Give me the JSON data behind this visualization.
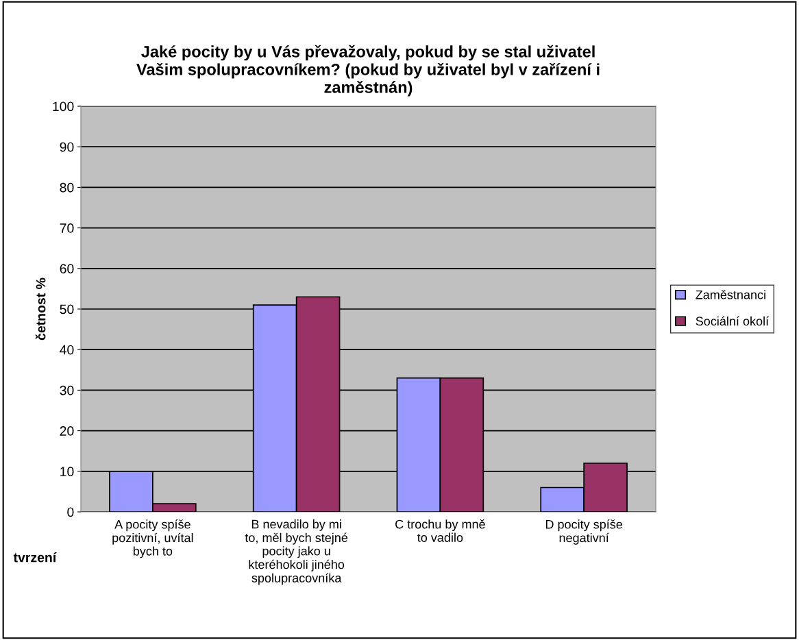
{
  "chart_data": {
    "type": "bar",
    "title": "Jaké pocity by u Vás převažovaly, pokud by se stal uživatel\nVašim spolupracovníkem? (pokud by uživatel byl v zařízení i\nzaměstnán)",
    "xlabel": "tvrzení",
    "ylabel": "četnost %",
    "categories": [
      "A pocity spíše\npozitivní, uvítal\nbych to",
      "B nevadilo by mi\nto, měl bych stejné\npocity jako u\nkteréhokoli jiného\nspolupracovníka",
      "C trochu by mně\nto vadilo",
      "D pocity spíše\nnegativní"
    ],
    "series": [
      {
        "name": "Zaměstnanci",
        "color": "#9999ff",
        "values": [
          10,
          51,
          33,
          6
        ]
      },
      {
        "name": "Sociální okolí",
        "color": "#993366",
        "values": [
          2,
          53,
          33,
          12
        ]
      }
    ],
    "ylim": [
      0,
      100
    ],
    "yticks": [
      0,
      10,
      20,
      30,
      40,
      50,
      60,
      70,
      80,
      90,
      100
    ],
    "grid": "y",
    "legend": "right"
  }
}
